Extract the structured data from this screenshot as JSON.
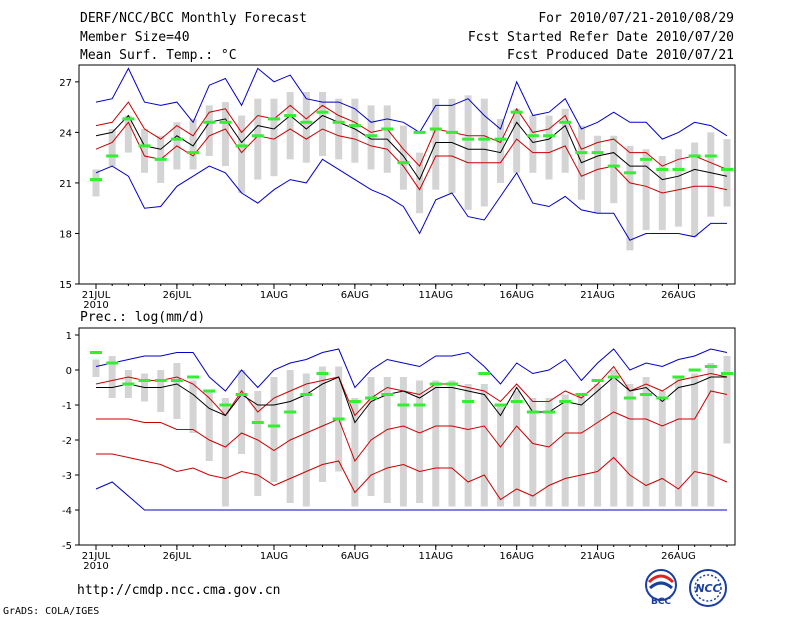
{
  "header": {
    "title": "DERF/NCC/BCC Monthly Forecast",
    "member_size": "Member Size=40",
    "variable": "Mean Surf. Temp.: °C",
    "period": "For 2010/07/21-2010/08/29",
    "fcst_started": "Fcst Started Refer Date 2010/07/20",
    "fcst_produced": "Fcst Produced Date 2010/07/21"
  },
  "footer": {
    "url": "http://cmdp.ncc.cma.gov.cn",
    "grads_credit": "GrADS: COLA/IGES",
    "logo_bcc_text": "BCC",
    "logo_ncc_text": "NCC"
  },
  "colors": {
    "envelope": "#0000cc",
    "inner": "#cc0000",
    "mean": "#000000",
    "observed": "#33ee33",
    "box": "#d4d4d4"
  },
  "chart_data": [
    {
      "type": "line",
      "title": "Mean Surf. Temp.: °C",
      "ylim": [
        15,
        28
      ],
      "yticks": [
        15,
        18,
        21,
        24,
        27
      ],
      "x_start_day": 0,
      "x_tick_labels": [
        "21JUL",
        "26JUL",
        "1AUG",
        "6AUG",
        "11AUG",
        "16AUG",
        "21AUG",
        "26AUG"
      ],
      "x_tick_days": [
        0,
        5,
        11,
        16,
        21,
        26,
        31,
        36
      ],
      "x_sub_label": "2010",
      "series": [
        {
          "name": "max",
          "color": "blue",
          "values": [
            25.8,
            26.0,
            27.8,
            25.8,
            25.6,
            25.8,
            24.6,
            26.8,
            27.2,
            25.6,
            27.8,
            27.0,
            27.4,
            26.0,
            25.8,
            25.8,
            25.4,
            24.6,
            24.8,
            24.6,
            24.0,
            25.6,
            25.6,
            26.0,
            25.0,
            24.2,
            27.0,
            25.0,
            25.2,
            26.0,
            24.2,
            24.6,
            25.2,
            24.6,
            24.6,
            23.6,
            24.0,
            24.6,
            24.4,
            23.8
          ]
        },
        {
          "name": "upper",
          "color": "red",
          "values": [
            24.4,
            24.6,
            25.8,
            24.2,
            23.6,
            24.4,
            23.8,
            25.2,
            25.4,
            24.0,
            25.0,
            24.8,
            25.6,
            24.8,
            25.6,
            25.0,
            24.6,
            24.0,
            24.2,
            23.0,
            22.0,
            24.2,
            24.0,
            23.8,
            23.8,
            23.4,
            25.4,
            24.0,
            24.2,
            25.0,
            23.0,
            23.4,
            23.6,
            22.8,
            22.8,
            22.0,
            22.4,
            22.6,
            22.2,
            21.8
          ]
        },
        {
          "name": "mean",
          "color": "black",
          "values": [
            23.8,
            24.0,
            25.0,
            23.2,
            23.0,
            23.8,
            23.2,
            24.6,
            24.8,
            23.4,
            24.4,
            24.2,
            25.0,
            24.2,
            25.0,
            24.6,
            24.2,
            23.6,
            23.6,
            22.6,
            21.2,
            23.4,
            23.4,
            23.0,
            23.0,
            22.8,
            24.6,
            23.4,
            23.6,
            24.4,
            22.2,
            22.6,
            22.8,
            22.0,
            22.0,
            21.2,
            21.4,
            21.8,
            21.6,
            21.4
          ]
        },
        {
          "name": "lower",
          "color": "red",
          "values": [
            23.0,
            23.4,
            24.6,
            22.6,
            22.4,
            23.2,
            22.6,
            23.8,
            24.2,
            22.8,
            23.8,
            23.6,
            24.2,
            23.6,
            24.2,
            23.8,
            23.6,
            23.2,
            23.0,
            22.0,
            20.6,
            22.6,
            22.6,
            22.2,
            22.2,
            22.2,
            23.6,
            22.8,
            22.8,
            23.2,
            21.4,
            21.8,
            22.0,
            21.0,
            20.8,
            20.4,
            20.6,
            20.8,
            20.8,
            20.6
          ]
        },
        {
          "name": "min",
          "color": "blue",
          "values": [
            21.6,
            22.0,
            21.4,
            19.5,
            19.6,
            20.8,
            21.4,
            22.0,
            21.6,
            20.4,
            19.8,
            20.6,
            21.2,
            21.0,
            22.4,
            21.8,
            21.2,
            20.6,
            20.2,
            19.6,
            18.0,
            20.0,
            20.4,
            19.0,
            18.8,
            20.2,
            21.6,
            19.8,
            19.6,
            20.2,
            19.4,
            19.2,
            19.2,
            17.6,
            18.0,
            18.0,
            18.0,
            17.8,
            18.6,
            18.6
          ]
        },
        {
          "name": "box_hi",
          "color": "gray",
          "values": [
            21.8,
            24.2,
            25.0,
            24.2,
            23.8,
            24.6,
            24.8,
            25.6,
            25.8,
            25.0,
            26.0,
            26.0,
            26.4,
            26.4,
            26.4,
            26.0,
            26.0,
            25.6,
            25.6,
            24.4,
            22.8,
            26.0,
            26.0,
            26.2,
            26.0,
            24.8,
            25.4,
            25.0,
            25.0,
            25.4,
            24.4,
            23.8,
            23.8,
            23.2,
            23.0,
            22.6,
            23.0,
            23.4,
            24.0,
            23.6
          ]
        },
        {
          "name": "box_lo",
          "color": "gray",
          "values": [
            20.2,
            22.0,
            22.8,
            21.6,
            21.0,
            21.8,
            21.8,
            22.6,
            22.0,
            20.4,
            21.2,
            21.4,
            22.4,
            22.2,
            22.6,
            22.4,
            22.2,
            21.8,
            21.6,
            20.6,
            19.2,
            20.6,
            20.4,
            19.4,
            19.6,
            21.0,
            21.6,
            21.6,
            21.2,
            21.6,
            20.0,
            19.2,
            19.8,
            17.0,
            18.2,
            18.2,
            18.4,
            17.8,
            19.0,
            19.6
          ]
        },
        {
          "name": "observed",
          "color": "green",
          "values": [
            21.2,
            22.6,
            24.8,
            23.2,
            22.4,
            23.6,
            22.8,
            24.6,
            24.6,
            23.2,
            23.8,
            24.8,
            25.0,
            24.6,
            25.2,
            24.6,
            24.4,
            23.8,
            24.2,
            22.2,
            24.0,
            24.2,
            24.0,
            23.6,
            23.6,
            23.6,
            25.2,
            23.8,
            23.8,
            24.6,
            22.8,
            22.8,
            22.0,
            21.6,
            22.4,
            21.8,
            21.8,
            22.6,
            22.6,
            21.8
          ]
        }
      ]
    },
    {
      "type": "line",
      "title": "Prec.: log(mm/d)",
      "ylim": [
        -5,
        1.2
      ],
      "yticks": [
        -5,
        -4,
        -3,
        -2,
        -1,
        0,
        1
      ],
      "x_start_day": 0,
      "x_tick_labels": [
        "21JUL",
        "26JUL",
        "1AUG",
        "6AUG",
        "11AUG",
        "16AUG",
        "21AUG",
        "26AUG"
      ],
      "x_tick_days": [
        0,
        5,
        11,
        16,
        21,
        26,
        31,
        36
      ],
      "x_sub_label": "2010",
      "series": [
        {
          "name": "max",
          "color": "blue",
          "values": [
            0.1,
            0.2,
            0.3,
            0.4,
            0.4,
            0.5,
            0.5,
            -0.2,
            -0.6,
            0.0,
            -0.5,
            0.0,
            0.2,
            0.3,
            0.5,
            0.6,
            -0.5,
            0.0,
            0.3,
            0.2,
            0.1,
            0.4,
            0.4,
            0.5,
            0.1,
            -0.4,
            0.2,
            -0.1,
            0.0,
            0.3,
            -0.3,
            0.2,
            0.6,
            0.0,
            0.2,
            0.1,
            0.3,
            0.4,
            0.6,
            0.5
          ]
        },
        {
          "name": "upper",
          "color": "red",
          "values": [
            -0.4,
            -0.3,
            -0.2,
            -0.3,
            -0.3,
            -0.2,
            -0.4,
            -0.8,
            -1.3,
            -0.6,
            -1.2,
            -0.8,
            -0.6,
            -0.4,
            -0.3,
            -0.2,
            -1.3,
            -0.8,
            -0.5,
            -0.6,
            -0.7,
            -0.4,
            -0.4,
            -0.5,
            -0.6,
            -0.9,
            -0.4,
            -0.9,
            -0.9,
            -0.6,
            -0.8,
            -0.4,
            0.1,
            -0.6,
            -0.4,
            -0.6,
            -0.3,
            -0.2,
            -0.1,
            -0.2
          ]
        },
        {
          "name": "mean",
          "color": "black",
          "values": [
            -0.5,
            -0.5,
            -0.4,
            -0.5,
            -0.5,
            -0.4,
            -0.7,
            -1.1,
            -1.3,
            -0.7,
            -1.0,
            -1.0,
            -0.9,
            -0.7,
            -0.4,
            -0.2,
            -1.5,
            -0.9,
            -0.7,
            -0.6,
            -0.8,
            -0.5,
            -0.5,
            -0.6,
            -0.7,
            -1.3,
            -0.5,
            -1.2,
            -1.2,
            -0.9,
            -1.0,
            -0.6,
            -0.2,
            -0.6,
            -0.5,
            -0.9,
            -0.5,
            -0.4,
            -0.2,
            -0.2
          ]
        },
        {
          "name": "lower",
          "color": "red",
          "values": [
            -1.4,
            -1.4,
            -1.4,
            -1.5,
            -1.5,
            -1.7,
            -1.7,
            -2.0,
            -2.2,
            -1.8,
            -2.0,
            -2.3,
            -2.0,
            -1.8,
            -1.6,
            -1.4,
            -2.6,
            -2.0,
            -1.7,
            -1.6,
            -1.8,
            -1.6,
            -1.6,
            -1.7,
            -1.6,
            -2.2,
            -1.6,
            -2.1,
            -2.2,
            -1.8,
            -1.8,
            -1.5,
            -1.2,
            -1.4,
            -1.4,
            -1.6,
            -1.4,
            -1.4,
            -0.6,
            -0.7
          ]
        },
        {
          "name": "lower2",
          "color": "red",
          "values": [
            -2.4,
            -2.4,
            -2.5,
            -2.6,
            -2.7,
            -2.9,
            -2.8,
            -3.0,
            -3.1,
            -2.9,
            -3.0,
            -3.3,
            -3.1,
            -2.9,
            -2.7,
            -2.6,
            -3.5,
            -3.0,
            -2.8,
            -2.7,
            -2.9,
            -2.8,
            -2.8,
            -3.2,
            -3.0,
            -3.7,
            -3.4,
            -3.6,
            -3.3,
            -3.1,
            -3.0,
            -2.9,
            -2.5,
            -3.0,
            -3.3,
            -3.1,
            -3.4,
            -2.9,
            -3.0,
            -3.2
          ]
        },
        {
          "name": "min",
          "color": "blue",
          "values": [
            -3.4,
            -3.2,
            -3.6,
            -4.0,
            -4.0,
            -4.0,
            -4.0,
            -4.0,
            -4.0,
            -4.0,
            -4.0,
            -4.0,
            -4.0,
            -4.0,
            -4.0,
            -4.0,
            -4.0,
            -4.0,
            -4.0,
            -4.0,
            -4.0,
            -4.0,
            -4.0,
            -4.0,
            -4.0,
            -4.0,
            -4.0,
            -4.0,
            -4.0,
            -4.0,
            -4.0,
            -4.0,
            -4.0,
            -4.0,
            -4.0,
            -4.0,
            -4.0,
            -4.0,
            -4.0,
            -4.0
          ]
        },
        {
          "name": "box_hi",
          "color": "gray",
          "values": [
            0.3,
            0.4,
            0.0,
            -0.1,
            0.0,
            0.2,
            -0.3,
            -0.6,
            -0.8,
            0.0,
            -0.6,
            -0.2,
            0.0,
            -0.1,
            0.1,
            0.1,
            -0.8,
            -0.2,
            -0.2,
            -0.2,
            -0.3,
            -0.3,
            -0.3,
            -0.4,
            -0.4,
            -1.0,
            -0.6,
            -0.8,
            -0.8,
            -0.7,
            -0.7,
            -0.4,
            0.0,
            -0.4,
            -0.2,
            -0.6,
            -0.2,
            -0.1,
            0.2,
            0.4
          ]
        },
        {
          "name": "box_lo",
          "color": "gray",
          "values": [
            -0.2,
            -0.8,
            -0.8,
            -0.9,
            -1.2,
            -1.4,
            -1.8,
            -2.6,
            -3.9,
            -2.4,
            -3.6,
            -3.2,
            -3.8,
            -3.9,
            -3.2,
            -2.9,
            -3.9,
            -3.6,
            -3.8,
            -3.9,
            -3.8,
            -3.9,
            -3.9,
            -3.9,
            -3.9,
            -3.9,
            -3.9,
            -3.9,
            -3.9,
            -3.9,
            -3.9,
            -3.9,
            -3.9,
            -3.9,
            -3.9,
            -3.9,
            -3.9,
            -3.9,
            -3.9,
            -2.1
          ]
        },
        {
          "name": "observed",
          "color": "green",
          "values": [
            0.5,
            0.2,
            -0.4,
            -0.3,
            -0.3,
            -0.3,
            -0.2,
            -0.6,
            -1.0,
            -0.7,
            -1.5,
            -1.6,
            -1.2,
            -0.7,
            -0.1,
            -1.4,
            -0.9,
            -0.8,
            -0.7,
            -1.0,
            -1.0,
            -0.4,
            -0.4,
            -0.9,
            -0.1,
            -1.0,
            -0.9,
            -1.2,
            -1.2,
            -0.9,
            -0.7,
            -0.3,
            -0.2,
            -0.8,
            -0.7,
            -0.8,
            -0.2,
            0.0,
            0.1,
            -0.1
          ]
        }
      ]
    }
  ]
}
